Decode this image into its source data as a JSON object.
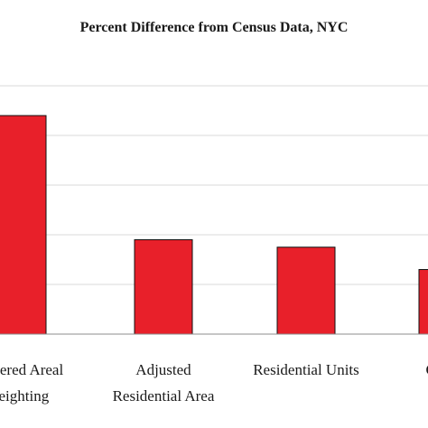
{
  "chart_data": {
    "type": "bar",
    "title": "Percent Difference from Census Data, NYC",
    "categories": [
      [
        "Centered Areal",
        "Weighting"
      ],
      [
        "Adjusted",
        "Residential Area"
      ],
      [
        "Residential Units"
      ],
      [
        "Census"
      ]
    ],
    "values": [
      44,
      19,
      17.5,
      13
    ],
    "ylim": [
      0,
      50
    ],
    "grid": true,
    "bar_color": "#e8202a",
    "xlabel": "",
    "ylabel": ""
  }
}
